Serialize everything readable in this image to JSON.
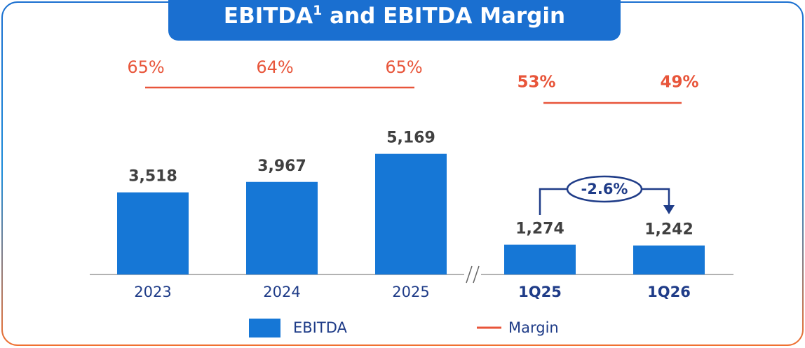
{
  "chart_data": {
    "type": "bar",
    "title_parts": [
      "EBITDA",
      "1",
      " and EBITDA Margin"
    ],
    "categories": [
      "2023",
      "2024",
      "2025",
      "1Q25",
      "1Q26"
    ],
    "series": [
      {
        "name": "EBITDA",
        "color": "#1677d6",
        "values": [
          3518,
          3967,
          5169,
          1274,
          1242
        ],
        "value_labels": [
          "3,518",
          "3,967",
          "5,169",
          "1,274",
          "1,242"
        ]
      },
      {
        "name": "Margin",
        "color": "#e8553a",
        "values": [
          65,
          64,
          65,
          53,
          49
        ],
        "value_labels": [
          "65%",
          "64%",
          "65%",
          "53%",
          "49%"
        ]
      }
    ],
    "annotation": "-2.6%",
    "ylim": [
      0,
      6000
    ]
  }
}
